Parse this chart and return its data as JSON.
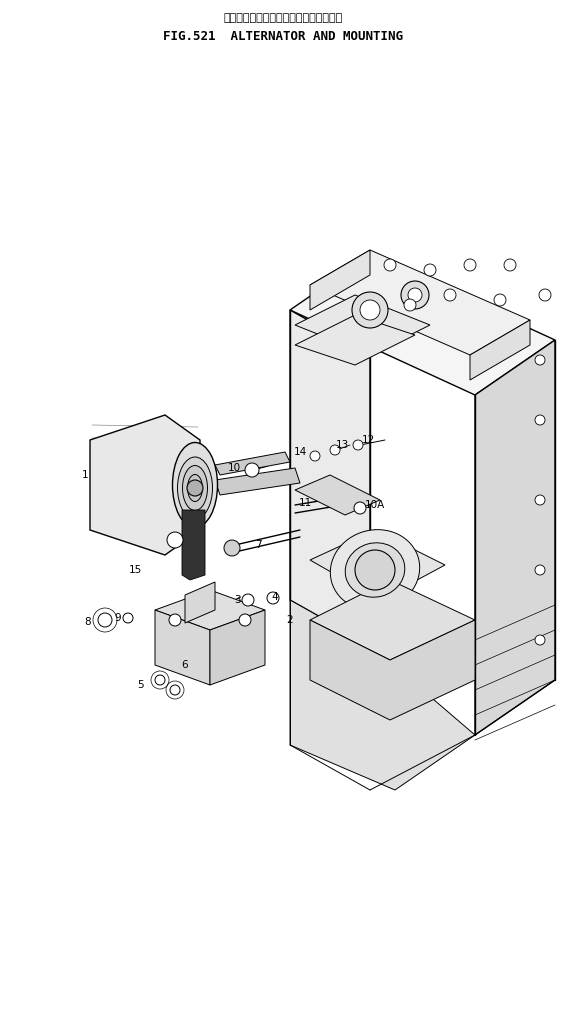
{
  "title_japanese": "オルタネータ　および　マウンティング",
  "title_english": "FIG.521  ALTERNATOR AND MOUNTING",
  "bg_color": "#ffffff",
  "line_color": "#000000",
  "fig_width": 5.66,
  "fig_height": 10.14,
  "dpi": 100
}
